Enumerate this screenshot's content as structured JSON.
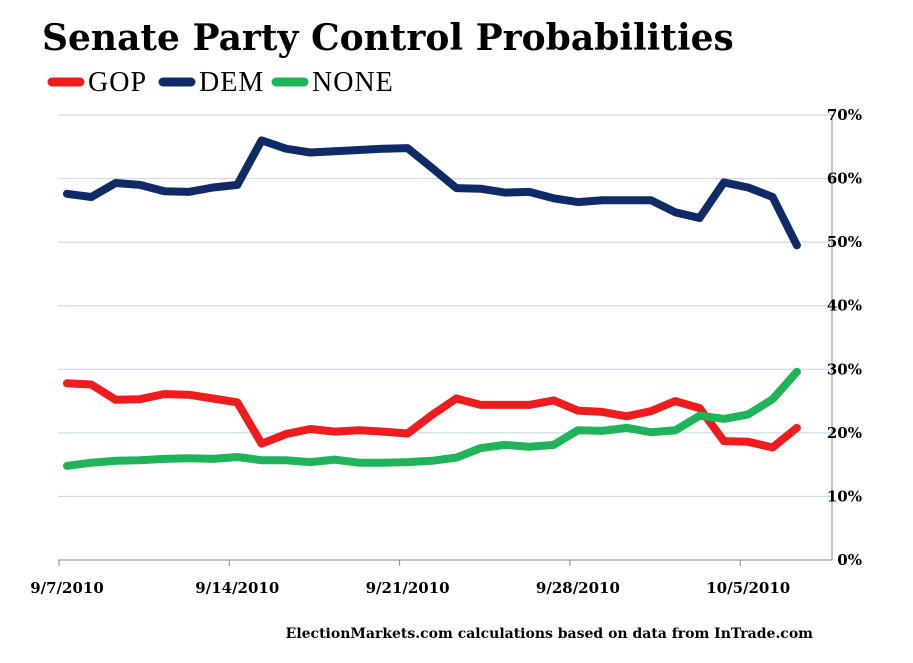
{
  "chart_data": {
    "type": "line",
    "title": "Senate Party Control Probabilities",
    "source": "ElectionMarkets.com calculations based on data from InTrade.com",
    "xlabel": "",
    "ylabel": "",
    "ylim": [
      0,
      70
    ],
    "y_ticks": [
      "0%",
      "10%",
      "20%",
      "30%",
      "40%",
      "50%",
      "60%",
      "70%"
    ],
    "y_axis_side": "right",
    "grid": true,
    "legend_position": "top-left",
    "x_ticks": [
      {
        "label": "9/7/2010",
        "index": 0
      },
      {
        "label": "9/14/2010",
        "index": 7
      },
      {
        "label": "9/21/2010",
        "index": 14
      },
      {
        "label": "9/28/2010",
        "index": 21
      },
      {
        "label": "10/5/2010",
        "index": 28
      }
    ],
    "x_count": 31,
    "series": [
      {
        "name": "GOP",
        "color": "#ee1c1c",
        "start_index": 0,
        "values": [
          27.8,
          27.6,
          25.2,
          25.3,
          26.1,
          26.0,
          25.4,
          24.8,
          18.3,
          19.8,
          20.6,
          20.2,
          20.4,
          20.2,
          19.9,
          22.8,
          25.4,
          24.4,
          24.4,
          24.4,
          25.1,
          23.5,
          23.3,
          22.6,
          23.4,
          25.0,
          23.9,
          18.7,
          18.6,
          17.7,
          20.8
        ]
      },
      {
        "name": "DEM",
        "color": "#0f2a66",
        "start_index": 0,
        "values": [
          57.6,
          57.1,
          59.3,
          59.0,
          58.0,
          57.9,
          58.6,
          59.0,
          66.0,
          64.7,
          64.1,
          64.3,
          64.5,
          64.7,
          64.8,
          61.7,
          58.5,
          58.4,
          57.8,
          57.9,
          56.9,
          56.3,
          56.6,
          56.6,
          56.6,
          54.7,
          53.8,
          59.4,
          58.6,
          57.1,
          49.5
        ]
      },
      {
        "name": "NONE",
        "color": "#1fb45a",
        "start_index": 0,
        "values": [
          14.8,
          15.3,
          15.6,
          15.7,
          15.9,
          16.0,
          15.9,
          16.2,
          15.7,
          15.7,
          15.4,
          15.8,
          15.3,
          15.3,
          15.4,
          15.6,
          16.1,
          17.6,
          18.1,
          17.8,
          18.1,
          20.4,
          20.3,
          20.8,
          20.1,
          20.4,
          22.7,
          22.2,
          22.9,
          25.3,
          29.6
        ]
      }
    ]
  }
}
